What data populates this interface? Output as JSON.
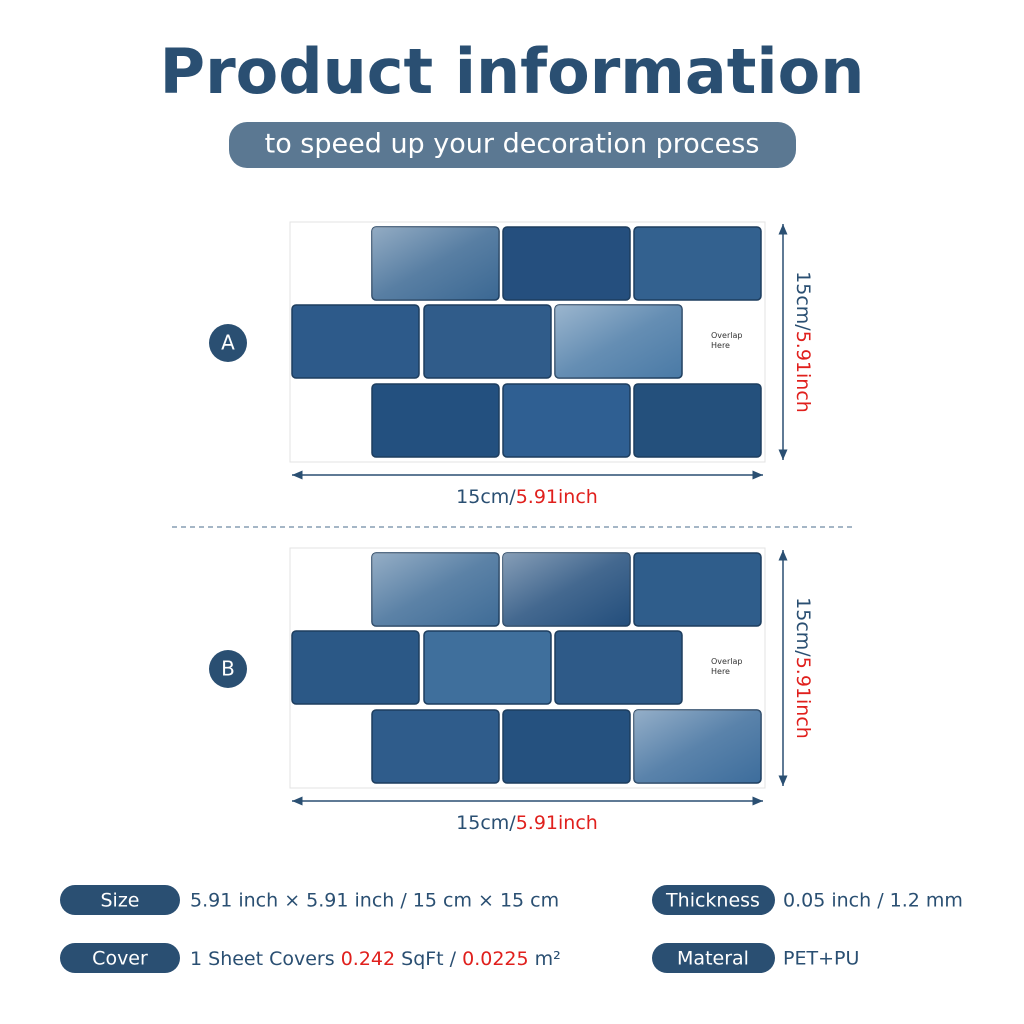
{
  "header": {
    "title": "Product information",
    "subtitle": "to speed up your decoration process"
  },
  "panels": [
    {
      "label": "A",
      "overlap": [
        "Overlap",
        "Here"
      ],
      "width": {
        "metric": "15cm/",
        "imperial": "5.91inch"
      },
      "height": {
        "metric": "15cm/",
        "imperial": "5.91inch"
      }
    },
    {
      "label": "B",
      "overlap": [
        "Overlap",
        "Here"
      ],
      "width": {
        "metric": "15cm/",
        "imperial": "5.91inch"
      },
      "height": {
        "metric": "15cm/",
        "imperial": "5.91inch"
      }
    }
  ],
  "specs": {
    "size": {
      "label": "Size",
      "text": "5.91 inch × 5.91 inch / 15 cm × 15 cm"
    },
    "thickness": {
      "label": "Thickness",
      "text": "0.05 inch / 1.2 mm"
    },
    "cover": {
      "label": "Cover",
      "parts": [
        "1 Sheet Covers ",
        "0.242",
        " SqFt / ",
        "0.0225",
        " m²"
      ]
    },
    "material": {
      "label": "Materal",
      "text": "PET+PU"
    }
  }
}
